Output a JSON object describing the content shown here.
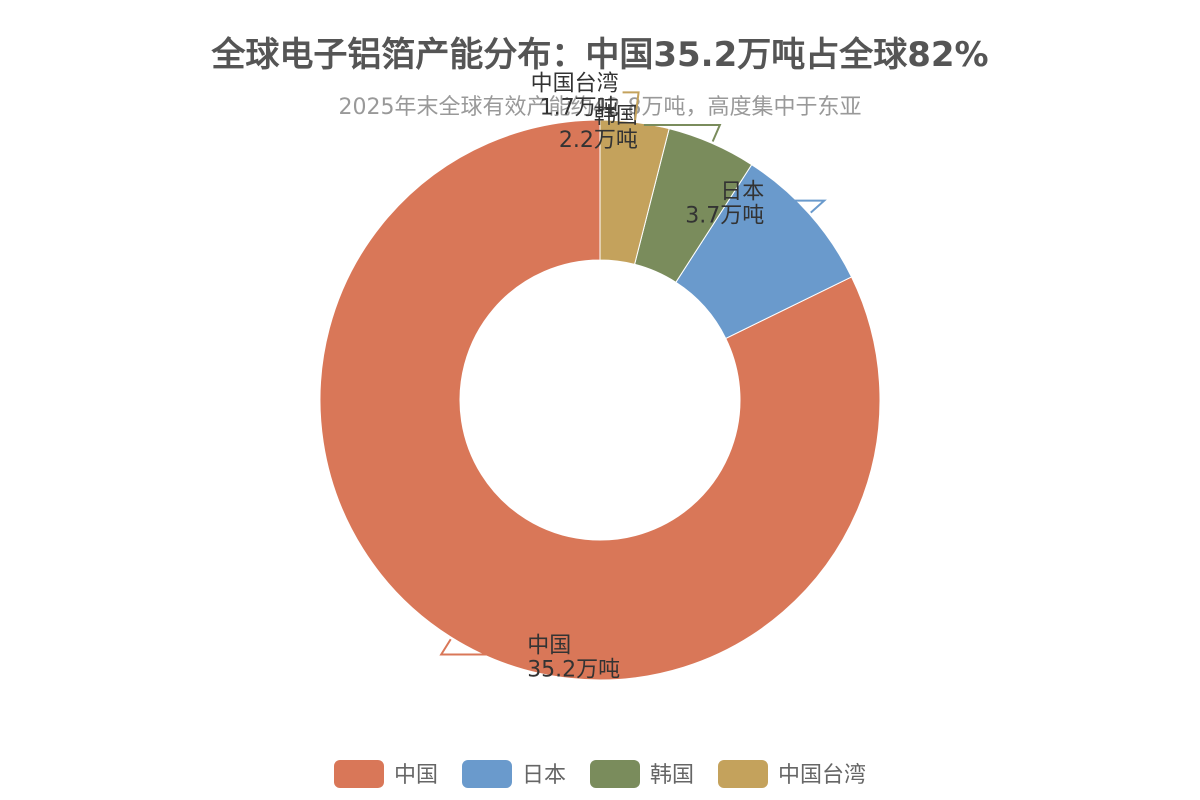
{
  "chart_data": {
    "type": "pie",
    "variant": "donut",
    "title": "全球电子铝箔产能分布：中国35.2万吨占全球82%",
    "subtitle": "2025年末全球有效产能约42.8万吨，高度集中于东亚",
    "unit": "万吨",
    "categories": [
      "中国",
      "日本",
      "韩国",
      "中国台湾"
    ],
    "values": [
      35.2,
      3.7,
      2.2,
      1.7
    ],
    "labels": [
      "35.2万吨",
      "3.7万吨",
      "2.2万吨",
      "1.7万吨"
    ],
    "colors": [
      "#d97758",
      "#6a9acc",
      "#7a8c5c",
      "#c4a25c"
    ],
    "legend_position": "bottom",
    "start_angle": "top, counterclockwise"
  }
}
